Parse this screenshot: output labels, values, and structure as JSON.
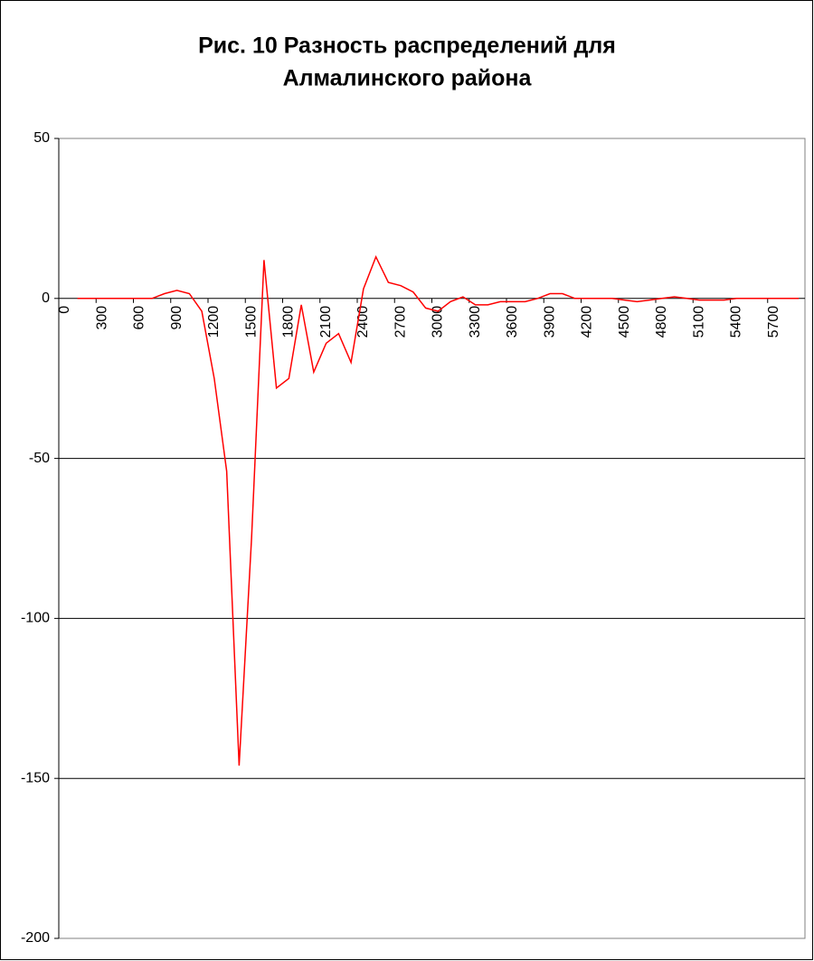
{
  "chart_data": {
    "type": "line",
    "title": [
      "Рис. 10 Разность распределений для",
      "Алмалинского района"
    ],
    "categories": [
      0,
      null,
      null,
      300,
      null,
      null,
      600,
      null,
      null,
      900,
      null,
      null,
      1200,
      null,
      null,
      1500,
      null,
      null,
      1800,
      null,
      null,
      2100,
      null,
      null,
      2400,
      null,
      null,
      2700,
      null,
      null,
      3000,
      null,
      null,
      3300,
      null,
      null,
      3600,
      null,
      null,
      3900,
      null,
      null,
      4200,
      null,
      null,
      4500,
      null,
      null,
      4800,
      null,
      null,
      5100,
      null,
      null,
      5400,
      null,
      null,
      5700,
      null,
      null
    ],
    "values": [
      null,
      0,
      0,
      0,
      0,
      0,
      0,
      0,
      1.5,
      2.5,
      1.5,
      -4,
      -25,
      -54,
      -146,
      -75,
      12,
      -28,
      -25,
      -2,
      -23,
      -14,
      -11,
      -20,
      3,
      13,
      5,
      4,
      2,
      -3,
      -4,
      -1,
      0.5,
      -2,
      -2,
      -1,
      -1,
      -1,
      0,
      1.5,
      1.5,
      0,
      0,
      0,
      0,
      -0.5,
      -1,
      -0.5,
      0,
      0.5,
      0,
      -0.5,
      -0.5,
      -0.5,
      0,
      0,
      0,
      0,
      0,
      0
    ],
    "color": "#ff0000",
    "ylim": [
      -200,
      50
    ],
    "yticks": [
      50,
      0,
      -50,
      -100,
      -150,
      -200
    ],
    "grid": true
  }
}
